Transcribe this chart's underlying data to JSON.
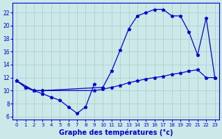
{
  "bg_color": "#cce8e8",
  "line_color": "#0000cc",
  "grid_color": "#aacccc",
  "xlabel": "Graphe des températures (°c)",
  "xlim": [
    -0.5,
    23.5
  ],
  "ylim": [
    5.5,
    23.5
  ],
  "ytick_vals": [
    6,
    8,
    10,
    12,
    14,
    16,
    18,
    20,
    22
  ],
  "xtick_labels": [
    "0",
    "1",
    "2",
    "3",
    "4",
    "5",
    "6",
    "7",
    "8",
    "9",
    "10",
    "11",
    "12",
    "13",
    "14",
    "15",
    "16",
    "17",
    "18",
    "19",
    "20",
    "21",
    "22",
    "23"
  ],
  "curve_bottom_x": [
    0,
    1,
    2,
    3,
    4,
    5,
    6,
    7,
    8,
    9
  ],
  "curve_bottom_y": [
    11.5,
    10.5,
    10.0,
    9.5,
    9.0,
    8.5,
    7.5,
    6.5,
    7.5,
    11.0
  ],
  "curve_min_x": [
    0,
    1,
    2,
    3,
    9,
    10,
    11,
    12,
    13,
    14,
    15,
    16,
    17,
    18,
    19,
    20,
    21,
    22,
    23
  ],
  "curve_min_y": [
    11.5,
    10.5,
    10.0,
    10.0,
    10.0,
    10.2,
    10.5,
    10.8,
    11.2,
    11.5,
    11.8,
    12.0,
    12.2,
    12.5,
    12.7,
    13.0,
    13.2,
    12.0,
    12.0
  ],
  "curve_max_x": [
    0,
    2,
    3,
    10,
    11,
    12,
    13,
    14,
    15,
    16,
    17,
    18,
    19,
    20,
    21,
    22,
    23
  ],
  "curve_max_y": [
    11.5,
    10.0,
    10.0,
    10.5,
    13.0,
    16.2,
    19.5,
    21.5,
    22.0,
    22.5,
    22.5,
    21.5,
    21.5,
    19.0,
    15.5,
    21.2,
    12.0
  ]
}
